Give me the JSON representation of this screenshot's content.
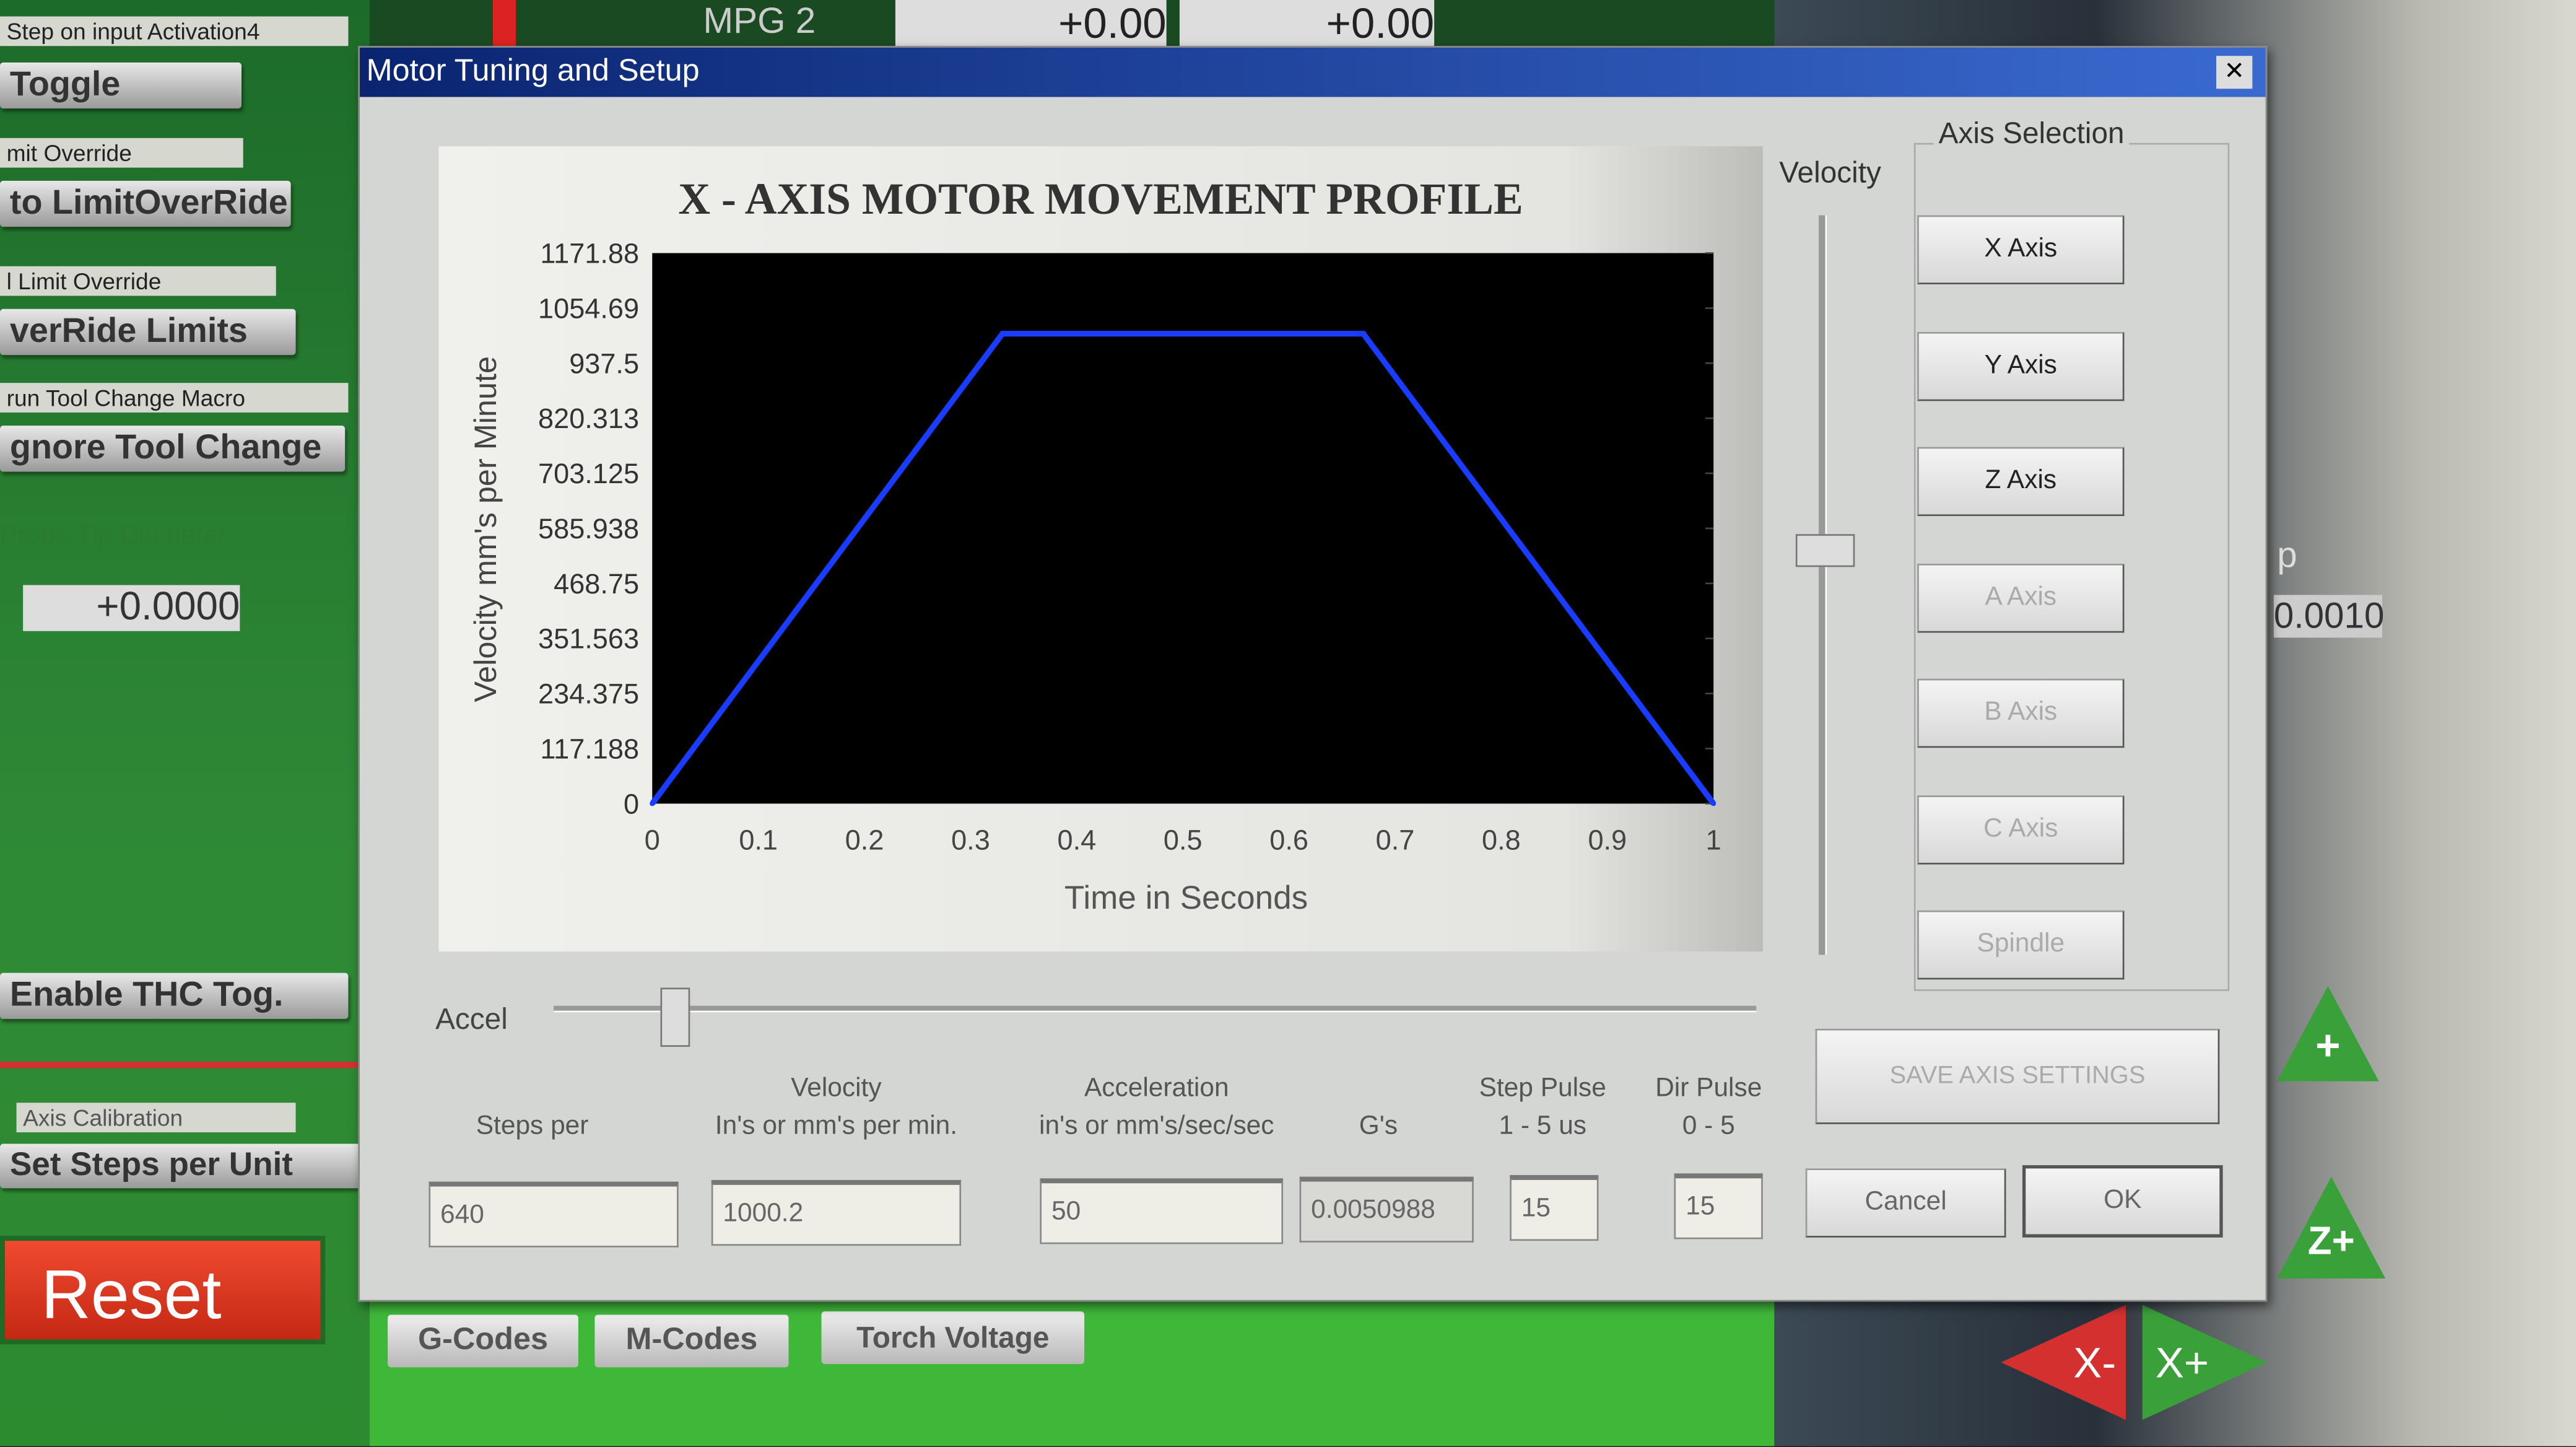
{
  "background": {
    "left_panel": {
      "labels": [
        "Step on input Activation4",
        "mit Override",
        "l Limit Override",
        "run Tool Change Macro",
        "Probe Tip Diameter",
        "Axis Calibration"
      ],
      "buttons": [
        "Toggle",
        "to LimitOverRide",
        "verRide Limits",
        "gnore Tool Change",
        "Enable THC Tog.",
        "Set Steps per Unit",
        "Reset"
      ],
      "probe_value": "+0.0000"
    },
    "top": {
      "mpg_label": "MPG 2",
      "dro1": "+0.00",
      "dro2": "+0.00"
    },
    "right": {
      "value": "0.0010",
      "label_p": "p"
    },
    "bottom_tabs": [
      "G-Codes",
      "M-Codes",
      "Torch Voltage"
    ],
    "jog": {
      "xminus": "X-",
      "xplus": "X+",
      "zplus": "Z+",
      "plus": "+"
    }
  },
  "dialog": {
    "title": "Motor Tuning and Setup",
    "close": "✕",
    "velocity_label": "Velocity",
    "accel_label": "Accel",
    "velocity_slider": 0.55,
    "accel_slider": 0.1,
    "axis_selection": {
      "title": "Axis Selection",
      "buttons": [
        {
          "label": "X Axis",
          "enabled": true
        },
        {
          "label": "Y Axis",
          "enabled": true
        },
        {
          "label": "Z Axis",
          "enabled": true
        },
        {
          "label": "A Axis",
          "enabled": false
        },
        {
          "label": "B Axis",
          "enabled": false
        },
        {
          "label": "C Axis",
          "enabled": false
        },
        {
          "label": "Spindle",
          "enabled": false
        }
      ]
    },
    "save_button": "SAVE AXIS SETTINGS",
    "columns": [
      {
        "line1": "",
        "line2": "Steps per",
        "value": "640"
      },
      {
        "line1": "Velocity",
        "line2": "In's or mm's per min.",
        "value": "1000.2"
      },
      {
        "line1": "Acceleration",
        "line2": "in's or mm's/sec/sec",
        "value": "50"
      },
      {
        "line1": "",
        "line2": "G's",
        "value": "0.0050988"
      },
      {
        "line1": "Step Pulse",
        "line2": "1 - 5 us",
        "value": "15"
      },
      {
        "line1": "Dir Pulse",
        "line2": "0 - 5",
        "value": "15"
      }
    ],
    "cancel": "Cancel",
    "ok": "OK"
  },
  "chart_data": {
    "type": "line",
    "title": "X - AXIS MOTOR MOVEMENT PROFILE",
    "xlabel": "Time in Seconds",
    "ylabel": "Velocity mm's per Minute",
    "xlim": [
      0,
      1
    ],
    "ylim": [
      0,
      1171.88
    ],
    "xticks": [
      "0",
      "0.1",
      "0.2",
      "0.3",
      "0.4",
      "0.5",
      "0.6",
      "0.7",
      "0.8",
      "0.9",
      "1"
    ],
    "yticks": [
      "0",
      "117.188",
      "234.375",
      "351.563",
      "468.75",
      "585.938",
      "703.125",
      "820.313",
      "937.5",
      "1054.69",
      "1171.88"
    ],
    "x": [
      0,
      0.33,
      0.67,
      1
    ],
    "y": [
      0,
      1000.2,
      1000.2,
      0
    ],
    "line_color": "#1a3cff",
    "background": "#000000",
    "grid": false
  }
}
